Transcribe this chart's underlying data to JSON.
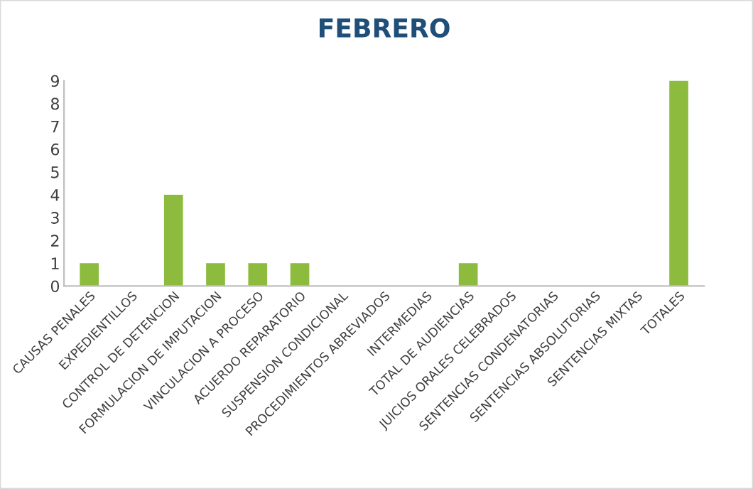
{
  "chart_data": {
    "type": "bar",
    "title": "FEBRERO",
    "categories": [
      "CAUSAS PENALES",
      "EXPEDIENTILLOS",
      "CONTROL DE DETENCION",
      "FORMULACION DE IMPUTACION",
      "VINCULACION A PROCESO",
      "ACUERDO REPARATORIO",
      "SUSPENSION CONDICIONAL",
      "PROCEDIMIENTOS ABREVIADOS",
      "INTERMEDIAS",
      "TOTAL DE AUDIENCIAS",
      "JUICIOS ORALES CELEBRADOS",
      "SENTENCIAS CONDENATORIAS",
      "SENTENCIAS ABSOLUTORIAS",
      "SENTENCIAS MIXTAS",
      "TOTALES"
    ],
    "values": [
      1,
      0,
      4,
      1,
      1,
      1,
      0,
      0,
      0,
      1,
      0,
      0,
      0,
      0,
      9
    ],
    "color": "#8dbb3e",
    "ylim": [
      0,
      9
    ],
    "yticks": [
      0,
      1,
      2,
      3,
      4,
      5,
      6,
      7,
      8,
      9
    ],
    "grid": false,
    "legend": false
  }
}
